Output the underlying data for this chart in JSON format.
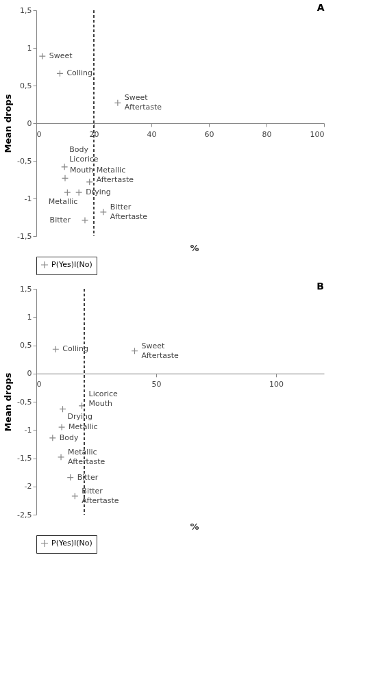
{
  "chart_data": [
    {
      "type": "scatter",
      "title": "A",
      "xlabel": "%",
      "ylabel": "Mean drops",
      "xlim": [
        0,
        100
      ],
      "ylim": [
        -1.5,
        1.5
      ],
      "xticks": [
        0,
        20,
        40,
        60,
        80,
        100
      ],
      "yticks": [
        {
          "value": -1.5,
          "label": "-1,5"
        },
        -1,
        {
          "value": -0.5,
          "label": "-0,5"
        },
        0,
        {
          "value": 0.5,
          "label": "0,5"
        },
        1,
        {
          "value": 1.5,
          "label": "1,5"
        }
      ],
      "grid": false,
      "legend": "bottom",
      "marker": "cross",
      "series": [
        {
          "name": "P(Yes)I(No)",
          "color": "#555555",
          "x": [
            2.1,
            8.2,
            28.3,
            9.8,
            10.0,
            18.5,
            10.8,
            14.8,
            23.3,
            16.9
          ],
          "values": [
            0.89,
            0.66,
            0.27,
            -0.58,
            -0.73,
            -0.78,
            -0.92,
            -0.92,
            -1.18,
            -1.29
          ],
          "value_labels": [
            "Sweet",
            "Colling",
            "Sweet\nAftertaste",
            "Body\nLicorice",
            "Mouth",
            "Metallic\nAftertaste",
            "Metallic",
            "Drying",
            "Bitter\nAftertaste",
            "Bitter"
          ]
        }
      ],
      "ref_lines": [
        {
          "axis": "x",
          "value": 20,
          "line_style": "dashed",
          "color": "#000000"
        }
      ]
    },
    {
      "type": "scatter",
      "title": "B",
      "xlabel": "%",
      "ylabel": "Mean drops",
      "xlim": [
        0,
        120
      ],
      "ylim": [
        -2.5,
        1.5
      ],
      "xticks": [
        0,
        50,
        100
      ],
      "yticks": [
        {
          "value": -2.5,
          "label": "-2,5"
        },
        -2,
        {
          "value": -1.5,
          "label": "-1,5"
        },
        -1,
        {
          "value": -0.5,
          "label": "-0,5"
        },
        0,
        {
          "value": 0.5,
          "label": "0,5"
        },
        1,
        {
          "value": 1.5,
          "label": "1,5"
        }
      ],
      "grid": false,
      "legend": "bottom",
      "marker": "cross",
      "series": [
        {
          "name": "P(Yes)I(No)",
          "color": "#555555",
          "x": [
            8.1,
            41,
            11,
            19,
            10.6,
            6.8,
            10.3,
            14.2,
            16.1
          ],
          "values": [
            0.43,
            0.4,
            -0.63,
            -0.57,
            -0.95,
            -1.14,
            -1.48,
            -1.84,
            -2.17
          ],
          "value_labels": [
            "Colling",
            "Sweet\nAftertaste",
            "Drying",
            "Licorice\nMouth",
            "Metallic",
            "Body",
            "Metallic\nAftertaste",
            "Bitter",
            "Bitter\nAftertaste"
          ]
        }
      ],
      "ref_lines": [
        {
          "axis": "x",
          "value": 20,
          "line_style": "dashed",
          "color": "#000000"
        }
      ]
    }
  ]
}
